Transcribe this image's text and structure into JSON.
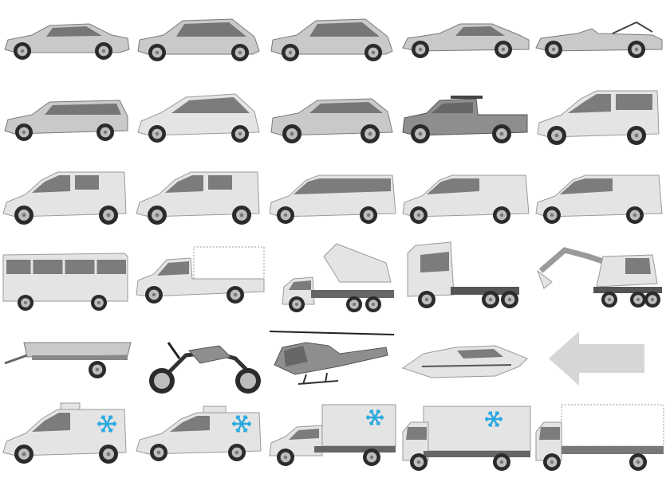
{
  "palette": {
    "body": "#c9c9c9",
    "body_light": "#e4e4e4",
    "body_dark": "#8e8e8e",
    "glass": "#5a5a5a",
    "tire": "#2b2b2b",
    "rim": "#bdbdbd",
    "snowflake": "#29a9e0",
    "arrow": "#d6d6d6"
  },
  "grid": {
    "columns": 5,
    "rows": 6,
    "cells": [
      {
        "type": "sedan",
        "icon": "sedan-icon",
        "tone": "mid"
      },
      {
        "type": "hatchback",
        "icon": "hatchback-icon",
        "tone": "mid"
      },
      {
        "type": "hatchback",
        "icon": "hatchback-icon",
        "tone": "mid"
      },
      {
        "type": "coupe",
        "icon": "coupe-icon",
        "tone": "mid"
      },
      {
        "type": "convertible",
        "icon": "convertible-icon",
        "tone": "mid"
      },
      {
        "type": "wagon",
        "icon": "station-wagon-icon",
        "tone": "mid"
      },
      {
        "type": "minivan",
        "icon": "compact-mpv-icon",
        "tone": "light"
      },
      {
        "type": "suv",
        "icon": "suv-icon",
        "tone": "mid"
      },
      {
        "type": "pickup",
        "icon": "pickup-truck-icon",
        "tone": "dark"
      },
      {
        "type": "tallvan",
        "icon": "leisure-van-icon",
        "tone": "light"
      },
      {
        "type": "van",
        "icon": "panel-van-icon",
        "tone": "light"
      },
      {
        "type": "van",
        "icon": "panel-van-icon",
        "tone": "light"
      },
      {
        "type": "minibus",
        "icon": "passenger-van-icon",
        "tone": "light"
      },
      {
        "type": "longvan",
        "icon": "panel-van-long-icon",
        "tone": "light"
      },
      {
        "type": "longvan",
        "icon": "panel-van-long-icon",
        "tone": "light"
      },
      {
        "type": "bus",
        "icon": "bus-icon",
        "tone": "light"
      },
      {
        "type": "flatbed",
        "icon": "flatbed-truck-icon",
        "tone": "light"
      },
      {
        "type": "dumptruck",
        "icon": "dump-truck-icon",
        "tone": "light"
      },
      {
        "type": "tractor",
        "icon": "semi-tractor-icon",
        "tone": "light"
      },
      {
        "type": "excavator",
        "icon": "excavator-icon",
        "tone": "light"
      },
      {
        "type": "trailer",
        "icon": "utility-trailer-icon",
        "tone": "mid"
      },
      {
        "type": "motorcycle",
        "icon": "motorcycle-icon",
        "tone": "dark"
      },
      {
        "type": "helicopter",
        "icon": "helicopter-icon",
        "tone": "dark"
      },
      {
        "type": "boat",
        "icon": "motor-yacht-icon",
        "tone": "light"
      },
      {
        "type": "arrow",
        "icon": "arrow-left-icon",
        "tone": "light"
      },
      {
        "type": "reefervan",
        "icon": "refrigerated-van-icon",
        "tone": "light"
      },
      {
        "type": "reefervan2",
        "icon": "refrigerated-van-icon",
        "tone": "light"
      },
      {
        "type": "reeferbox",
        "icon": "refrigerated-box-truck-icon",
        "tone": "light"
      },
      {
        "type": "reeferlorry",
        "icon": "refrigerated-lorry-icon",
        "tone": "light"
      },
      {
        "type": "flatlorry",
        "icon": "flatbed-lorry-icon",
        "tone": "light"
      }
    ]
  }
}
